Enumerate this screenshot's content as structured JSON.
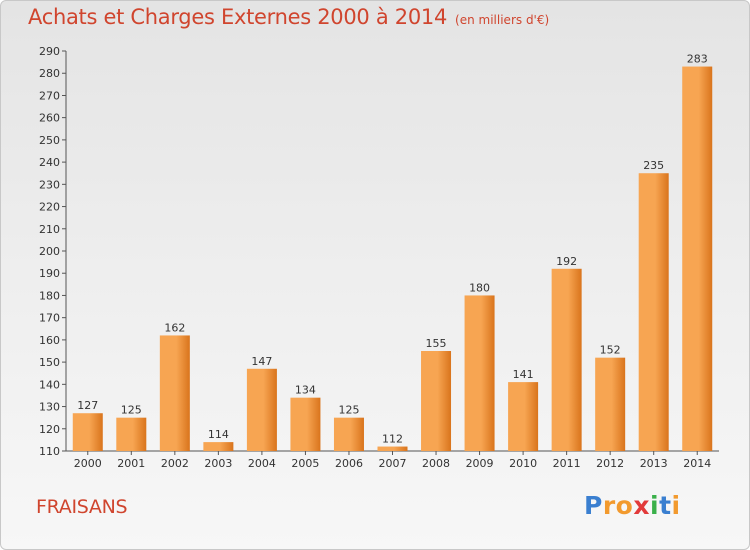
{
  "header": {
    "title": "Achats et Charges Externes 2000 à 2014",
    "unit": "(en milliers d'€)"
  },
  "commune": "FRAISANS",
  "logo": {
    "text": "Proxiti",
    "letters": [
      {
        "ch": "P",
        "color": "#3a7fd0"
      },
      {
        "ch": "r",
        "color": "#f29a2e"
      },
      {
        "ch": "o",
        "color": "#f29a2e"
      },
      {
        "ch": "x",
        "color": "#e23a3a"
      },
      {
        "ch": "i",
        "color": "#3ab04a"
      },
      {
        "ch": "t",
        "color": "#3a7fd0"
      },
      {
        "ch": "i",
        "color": "#f29a2e"
      }
    ]
  },
  "chart_data": {
    "type": "bar",
    "categories": [
      "2000",
      "2001",
      "2002",
      "2003",
      "2004",
      "2005",
      "2006",
      "2007",
      "2008",
      "2009",
      "2010",
      "2011",
      "2012",
      "2013",
      "2014"
    ],
    "values": [
      127,
      125,
      162,
      114,
      147,
      134,
      125,
      112,
      155,
      180,
      141,
      192,
      152,
      235,
      283
    ],
    "ylim": [
      110,
      290
    ],
    "yticks": [
      110,
      120,
      130,
      140,
      150,
      160,
      170,
      180,
      190,
      200,
      210,
      220,
      230,
      240,
      250,
      260,
      270,
      280,
      290
    ],
    "grid": false,
    "bar_color_light": "#f7a552",
    "bar_color_dark": "#d9741c"
  }
}
